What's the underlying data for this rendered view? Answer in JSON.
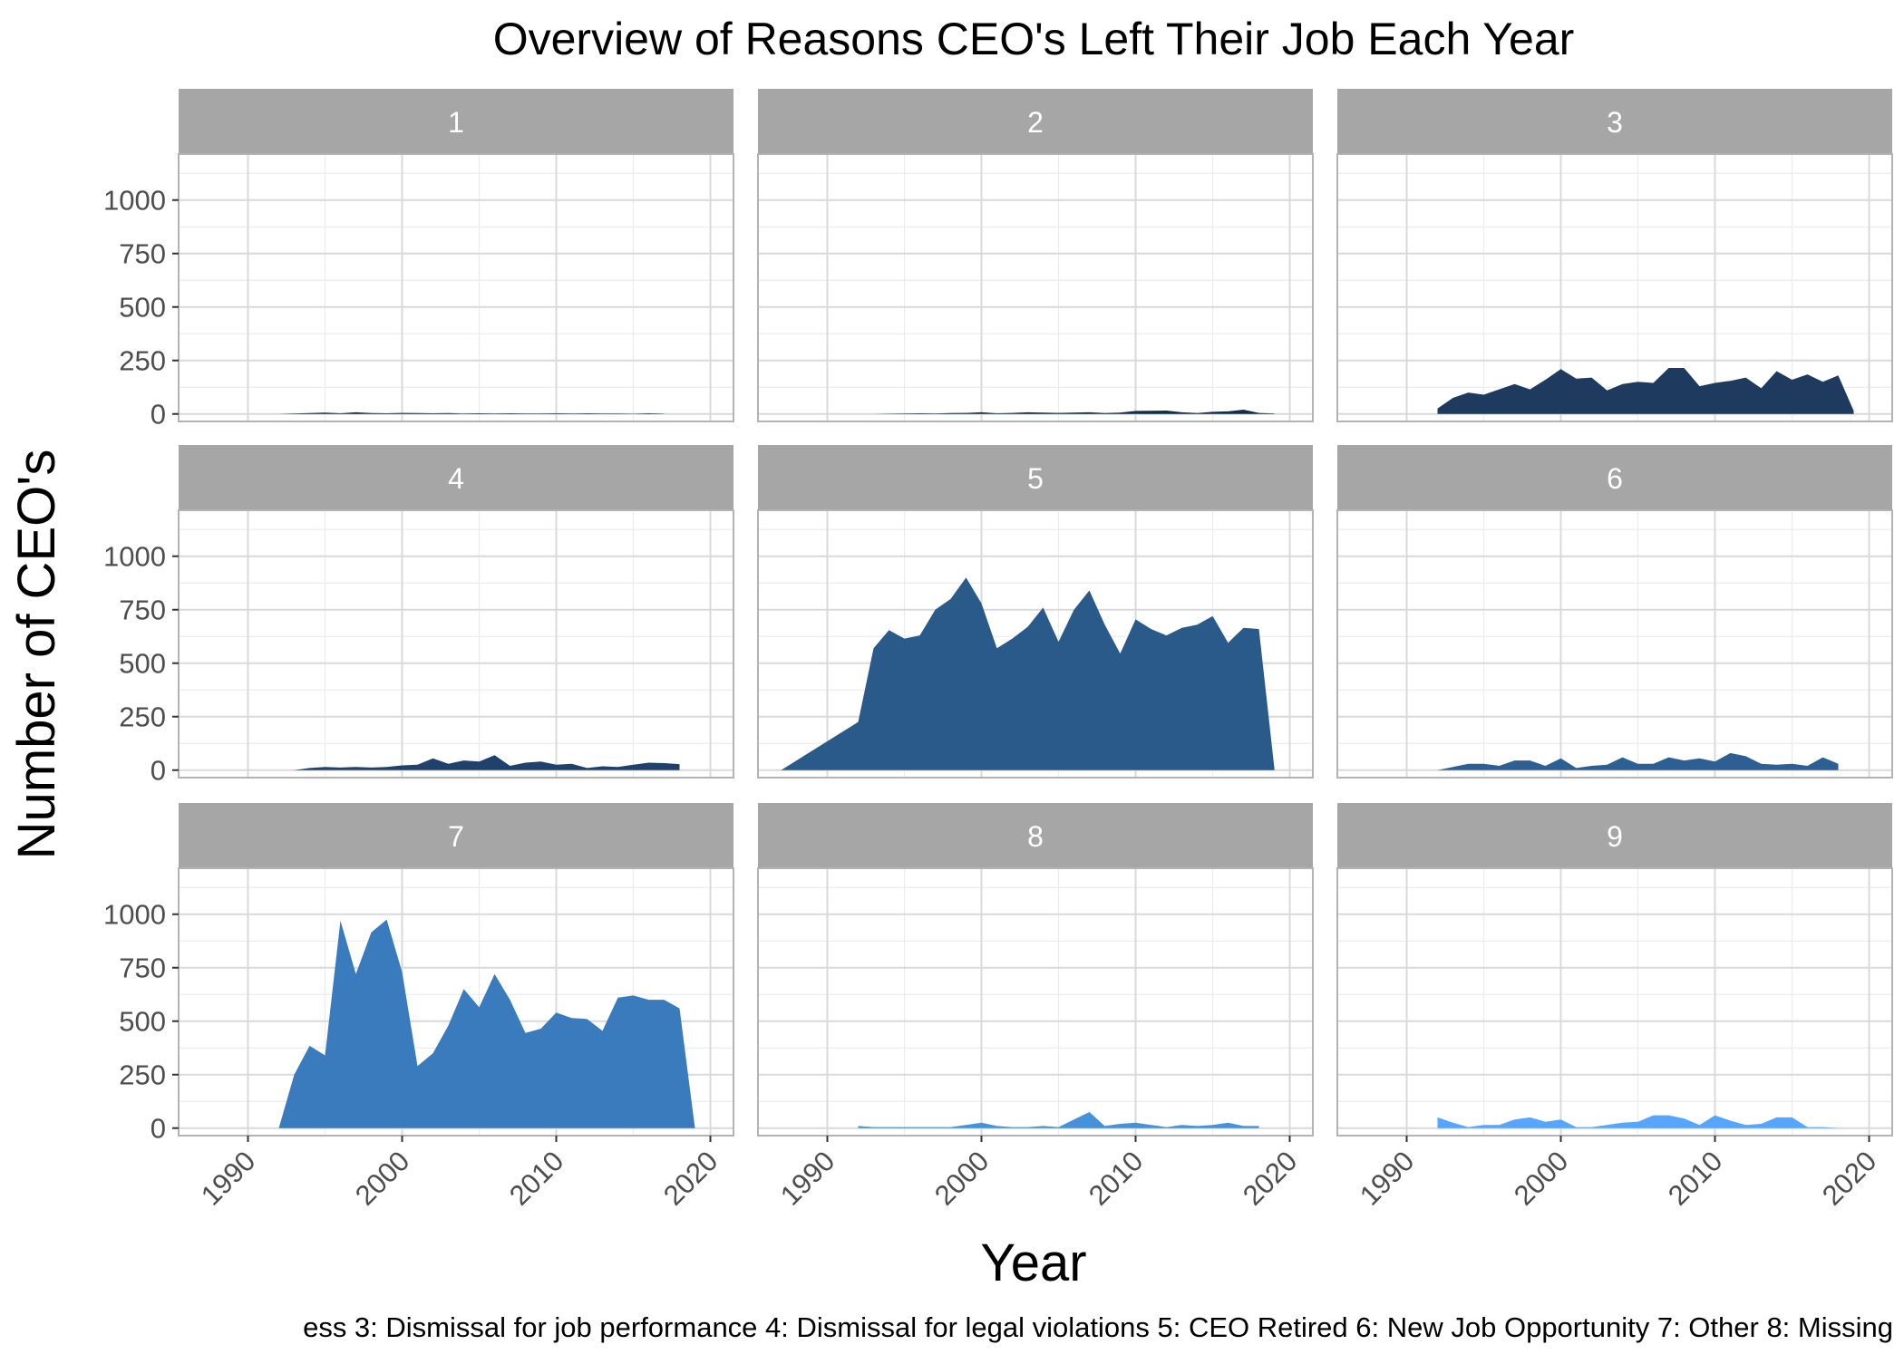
{
  "colors": {
    "facet_strip": "#a6a6a6",
    "grid_major": "#d9d9d9",
    "grid_minor": "#ececec",
    "panel_border": "#b3b3b3",
    "text": "#000000",
    "tick_text": "#4d4d4d",
    "strip_text": "#ffffff"
  },
  "chart_data": {
    "type": "area",
    "title": "Overview of Reasons CEO's Left Their Job Each Year",
    "xlabel": "Year",
    "ylabel": "Number of CEO's",
    "caption": "ess 3: Dismissal for job performance 4: Dismissal for legal violations 5: CEO Retired 6: New Job Opportunity 7: Other 8: Missing",
    "xlim": [
      1985.5,
      2021.5
    ],
    "ylim": [
      -35,
      1215
    ],
    "x_ticks": [
      1990,
      2000,
      2010,
      2020
    ],
    "y_ticks": [
      0,
      250,
      500,
      750,
      1000
    ],
    "grid": true,
    "legend": "none",
    "facets": [
      {
        "label": "1",
        "color": "#132b43",
        "x": [
          1992,
          1993,
          1994,
          1995,
          1996,
          1997,
          1998,
          1999,
          2000,
          2001,
          2002,
          2003,
          2004,
          2005,
          2006,
          2007,
          2008,
          2009,
          2010,
          2011,
          2012,
          2013,
          2014,
          2015,
          2016,
          2017
        ],
        "values": [
          0,
          2,
          4,
          6,
          3,
          8,
          4,
          3,
          5,
          4,
          3,
          4,
          2,
          3,
          2,
          3,
          2,
          2,
          3,
          2,
          3,
          2,
          2,
          1,
          3,
          1
        ]
      },
      {
        "label": "2",
        "color": "#142d47",
        "x": [
          1993,
          1994,
          1995,
          1996,
          1997,
          1998,
          1999,
          2000,
          2001,
          2002,
          2003,
          2004,
          2005,
          2006,
          2007,
          2008,
          2009,
          2010,
          2011,
          2012,
          2013,
          2014,
          2015,
          2016,
          2017,
          2018,
          2019
        ],
        "values": [
          0,
          1,
          2,
          3,
          2,
          4,
          5,
          8,
          3,
          5,
          8,
          6,
          5,
          6,
          8,
          4,
          6,
          14,
          15,
          16,
          8,
          4,
          10,
          12,
          20,
          5,
          2
        ]
      },
      {
        "label": "3",
        "color": "#1e3a5f",
        "x": [
          1992,
          1993,
          1994,
          1995,
          1996,
          1997,
          1998,
          1999,
          2000,
          2001,
          2002,
          2003,
          2004,
          2005,
          2006,
          2007,
          2008,
          2009,
          2010,
          2011,
          2012,
          2013,
          2014,
          2015,
          2016,
          2017,
          2018,
          2019
        ],
        "values": [
          25,
          75,
          100,
          90,
          115,
          140,
          115,
          160,
          210,
          165,
          170,
          110,
          140,
          150,
          145,
          215,
          215,
          130,
          145,
          155,
          170,
          120,
          200,
          160,
          185,
          150,
          180,
          15
        ]
      },
      {
        "label": "4",
        "color": "#20416a",
        "x": [
          1993,
          1994,
          1995,
          1996,
          1997,
          1998,
          1999,
          2000,
          2001,
          2002,
          2003,
          2004,
          2005,
          2006,
          2007,
          2008,
          2009,
          2010,
          2011,
          2012,
          2013,
          2014,
          2015,
          2016,
          2017,
          2018
        ],
        "values": [
          0,
          10,
          15,
          12,
          15,
          12,
          15,
          22,
          25,
          55,
          30,
          45,
          40,
          70,
          20,
          35,
          40,
          25,
          30,
          10,
          18,
          15,
          25,
          35,
          33,
          28
        ]
      },
      {
        "label": "5",
        "color": "#2a5a8a",
        "x": [
          1987,
          1988,
          1989,
          1990,
          1991,
          1992,
          1993,
          1994,
          1995,
          1996,
          1997,
          1998,
          1999,
          2000,
          2001,
          2002,
          2003,
          2004,
          2005,
          2006,
          2007,
          2008,
          2009,
          2010,
          2011,
          2012,
          2013,
          2014,
          2015,
          2016,
          2017,
          2018,
          2019
        ],
        "values": [
          0,
          45,
          90,
          135,
          180,
          225,
          570,
          655,
          615,
          630,
          750,
          800,
          900,
          780,
          570,
          615,
          670,
          760,
          600,
          750,
          840,
          680,
          545,
          705,
          660,
          630,
          665,
          680,
          720,
          595,
          665,
          660,
          10
        ]
      },
      {
        "label": "6",
        "color": "#2d5f93",
        "x": [
          1992,
          1993,
          1994,
          1995,
          1996,
          1997,
          1998,
          1999,
          2000,
          2001,
          2002,
          2003,
          2004,
          2005,
          2006,
          2007,
          2008,
          2009,
          2010,
          2011,
          2012,
          2013,
          2014,
          2015,
          2016,
          2017,
          2018
        ],
        "values": [
          0,
          15,
          30,
          30,
          20,
          45,
          45,
          20,
          55,
          10,
          20,
          25,
          60,
          30,
          30,
          60,
          45,
          55,
          40,
          80,
          65,
          30,
          25,
          30,
          20,
          60,
          30
        ]
      },
      {
        "label": "7",
        "color": "#3a7bbd",
        "x": [
          1992,
          1993,
          1994,
          1995,
          1996,
          1997,
          1998,
          1999,
          2000,
          2001,
          2002,
          2003,
          2004,
          2005,
          2006,
          2007,
          2008,
          2009,
          2010,
          2011,
          2012,
          2013,
          2014,
          2015,
          2016,
          2017,
          2018,
          2019
        ],
        "values": [
          0,
          250,
          385,
          340,
          970,
          720,
          915,
          975,
          730,
          290,
          350,
          480,
          650,
          565,
          720,
          600,
          445,
          465,
          540,
          515,
          510,
          455,
          610,
          620,
          600,
          600,
          560,
          0
        ]
      },
      {
        "label": "8",
        "color": "#4591db",
        "x": [
          1992,
          1993,
          1994,
          1995,
          1996,
          1997,
          1998,
          1999,
          2000,
          2001,
          2002,
          2003,
          2004,
          2005,
          2006,
          2007,
          2008,
          2009,
          2010,
          2011,
          2012,
          2013,
          2014,
          2015,
          2016,
          2017,
          2018
        ],
        "values": [
          10,
          5,
          5,
          5,
          5,
          5,
          5,
          15,
          25,
          10,
          5,
          5,
          10,
          5,
          40,
          75,
          10,
          20,
          25,
          15,
          5,
          15,
          10,
          15,
          25,
          10,
          10
        ]
      },
      {
        "label": "9",
        "color": "#56a5ff",
        "x": [
          1992,
          1993,
          1994,
          1995,
          1996,
          1997,
          1998,
          1999,
          2000,
          2001,
          2002,
          2003,
          2004,
          2005,
          2006,
          2007,
          2008,
          2009,
          2010,
          2011,
          2012,
          2013,
          2014,
          2015,
          2016,
          2017,
          2018
        ],
        "values": [
          50,
          25,
          5,
          15,
          15,
          40,
          50,
          30,
          40,
          5,
          5,
          15,
          25,
          30,
          60,
          60,
          45,
          15,
          60,
          35,
          15,
          20,
          50,
          50,
          5,
          5,
          0
        ]
      }
    ]
  }
}
